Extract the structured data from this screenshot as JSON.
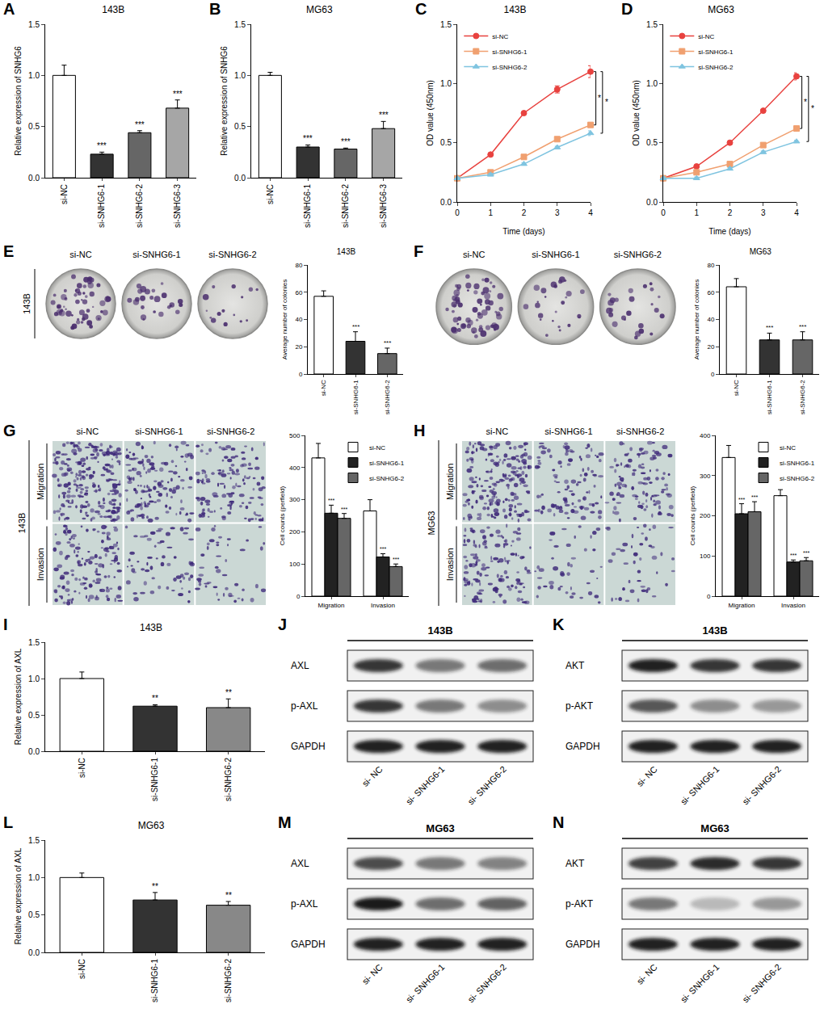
{
  "chart_data": [
    {
      "panel": "A",
      "type": "bar",
      "title": "143B",
      "categories": [
        "si-NC",
        "si-SNHG6-1",
        "si-SNHG6-2",
        "si-SNHG6-3"
      ],
      "values": [
        1.0,
        0.23,
        0.44,
        0.68
      ],
      "errors": [
        0.1,
        0.02,
        0.02,
        0.08
      ],
      "significance": [
        null,
        "***",
        "***",
        "***"
      ],
      "colors": [
        "#ffffff",
        "#333333",
        "#666666",
        "#a6a6a6"
      ],
      "y_label": "Relative expression of SNHG6",
      "ylim": [
        0,
        1.5
      ],
      "yticks": [
        {
          "value": 0,
          "label": "0.0"
        },
        {
          "value": 0.5,
          "label": "0.5"
        },
        {
          "value": 1,
          "label": "1.0"
        },
        {
          "value": 1.5,
          "label": "1.5"
        }
      ]
    },
    {
      "panel": "B",
      "type": "bar",
      "title": "MG63",
      "categories": [
        "si-NC",
        "si-SNHG6-1",
        "si-SNHG6-2",
        "si-SNHG6-3"
      ],
      "values": [
        1.0,
        0.3,
        0.28,
        0.48
      ],
      "errors": [
        0.03,
        0.02,
        0.01,
        0.07
      ],
      "significance": [
        null,
        "***",
        "***",
        "***"
      ],
      "colors": [
        "#ffffff",
        "#333333",
        "#666666",
        "#a6a6a6"
      ],
      "y_label": "Relative expression of SNHG6",
      "ylim": [
        0,
        1.5
      ],
      "yticks": [
        {
          "value": 0,
          "label": "0.0"
        },
        {
          "value": 0.5,
          "label": "0.5"
        },
        {
          "value": 1,
          "label": "1.0"
        },
        {
          "value": 1.5,
          "label": "1.5"
        }
      ]
    },
    {
      "panel": "C",
      "type": "line",
      "title": "143B",
      "x": [
        0,
        1,
        2,
        3,
        4
      ],
      "series": [
        {
          "name": "si-NC",
          "color": "#e8423f",
          "marker": "circle",
          "values": [
            0.2,
            0.4,
            0.75,
            0.95,
            1.1
          ],
          "errors": [
            0.01,
            0.01,
            0.01,
            0.03,
            0.05
          ]
        },
        {
          "name": "si-SNHG6-1",
          "color": "#f0a070",
          "marker": "square",
          "values": [
            0.2,
            0.25,
            0.38,
            0.53,
            0.65
          ],
          "errors": [
            0.01,
            0.01,
            0.01,
            0.01,
            0.02
          ]
        },
        {
          "name": "si-SNHG6-2",
          "color": "#7fc4e0",
          "marker": "triangle-up",
          "values": [
            0.2,
            0.23,
            0.32,
            0.46,
            0.58
          ],
          "errors": [
            0.01,
            0.01,
            0.01,
            0.01,
            0.02
          ]
        }
      ],
      "comparisons": [
        {
          "between": [
            "si-NC",
            "si-SNHG6-1"
          ],
          "label": "*"
        },
        {
          "between": [
            "si-NC",
            "si-SNHG6-2"
          ],
          "label": "*"
        }
      ],
      "x_label": "Time (days)",
      "y_label": "OD value (450nm)",
      "legend": "top-left",
      "xlim": [
        0,
        4
      ],
      "xticks": [
        0,
        1,
        2,
        3,
        4
      ],
      "ylim": [
        0,
        1.5
      ],
      "yticks": [
        {
          "value": 0,
          "label": "0.0"
        },
        {
          "value": 0.5,
          "label": "0.5"
        },
        {
          "value": 1,
          "label": "1.0"
        },
        {
          "value": 1.5,
          "label": "1.5"
        }
      ]
    },
    {
      "panel": "D",
      "type": "line",
      "title": "MG63",
      "x": [
        0,
        1,
        2,
        3,
        4
      ],
      "series": [
        {
          "name": "si-NC",
          "color": "#e8423f",
          "marker": "circle",
          "values": [
            0.2,
            0.3,
            0.5,
            0.77,
            1.06
          ],
          "errors": [
            0.01,
            0.01,
            0.01,
            0.01,
            0.03
          ]
        },
        {
          "name": "si-SNHG6-1",
          "color": "#f0a070",
          "marker": "square",
          "values": [
            0.2,
            0.25,
            0.32,
            0.48,
            0.62
          ],
          "errors": [
            0.01,
            0.01,
            0.01,
            0.01,
            0.02
          ]
        },
        {
          "name": "si-SNHG6-2",
          "color": "#7fc4e0",
          "marker": "triangle-up",
          "values": [
            0.2,
            0.2,
            0.28,
            0.42,
            0.51
          ],
          "errors": [
            0.01,
            0.01,
            0.01,
            0.01,
            0.01
          ]
        }
      ],
      "comparisons": [
        {
          "between": [
            "si-NC",
            "si-SNHG6-1"
          ],
          "label": "*"
        },
        {
          "between": [
            "si-NC",
            "si-SNHG6-2"
          ],
          "label": "*"
        }
      ],
      "x_label": "Time (days)",
      "y_label": "OD value (450nm)",
      "legend": "top-left",
      "xlim": [
        0,
        4
      ],
      "xticks": [
        0,
        1,
        2,
        3,
        4
      ],
      "ylim": [
        0,
        1.5
      ],
      "yticks": [
        {
          "value": 0,
          "label": "0.0"
        },
        {
          "value": 0.5,
          "label": "0.5"
        },
        {
          "value": 1,
          "label": "1.0"
        },
        {
          "value": 1.5,
          "label": "1.5"
        }
      ]
    },
    {
      "panel": "E",
      "type": "bar",
      "title": "143B",
      "categories": [
        "si-NC",
        "si-SNHG6-1",
        "si-SNHG6-2"
      ],
      "values": [
        57,
        24,
        15
      ],
      "errors": [
        4,
        7,
        4
      ],
      "significance": [
        null,
        "***",
        "***"
      ],
      "colors": [
        "#ffffff",
        "#333333",
        "#666666"
      ],
      "y_label": "Average number of colonies",
      "ylim": [
        0,
        80
      ],
      "yticks": [
        0,
        20,
        40,
        60,
        80
      ],
      "image": {
        "kind": "dish",
        "row_label": "143B",
        "labels": [
          "si-NC",
          "si-SNHG6-1",
          "si-SNHG6-2"
        ]
      }
    },
    {
      "panel": "F",
      "type": "bar",
      "title": "MG63",
      "categories": [
        "si-NC",
        "si-SNHG6-1",
        "si-SNHG6-2"
      ],
      "values": [
        64,
        25,
        25
      ],
      "errors": [
        6,
        5,
        6
      ],
      "significance": [
        null,
        "***",
        "***"
      ],
      "colors": [
        "#ffffff",
        "#333333",
        "#666666"
      ],
      "y_label": "Average number of colonies",
      "ylim": [
        0,
        80
      ],
      "yticks": [
        0,
        20,
        40,
        60,
        80
      ],
      "image": {
        "kind": "dish",
        "labels": [
          "si-NC",
          "si-SNHG6-1",
          "si-SNHG6-2"
        ]
      }
    },
    {
      "panel": "G",
      "type": "bar",
      "categories": [
        "Migration",
        "Invasion"
      ],
      "series": [
        {
          "name": "si-NC",
          "color": "#ffffff",
          "values": [
            430,
            265
          ],
          "errors": [
            45,
            35
          ],
          "significance": [
            null,
            null
          ]
        },
        {
          "name": "si-SNHG6-1",
          "color": "#222222",
          "values": [
            258,
            122
          ],
          "errors": [
            25,
            10
          ],
          "significance": [
            "***",
            "***"
          ]
        },
        {
          "name": "si-SNHG6-2",
          "color": "#666666",
          "values": [
            242,
            92
          ],
          "errors": [
            15,
            8
          ],
          "significance": [
            "***",
            "***"
          ]
        }
      ],
      "legend": "top-right",
      "y_label": "Cell counts (perfield)",
      "ylim": [
        0,
        500
      ],
      "yticks": [
        0,
        100,
        200,
        300,
        400,
        500
      ],
      "image": {
        "kind": "micrograph",
        "cell_line": "143B",
        "columns": [
          "si-NC",
          "si-SNHG6-1",
          "si-SNHG6-2"
        ],
        "rows": [
          "Migration",
          "Invasion"
        ]
      }
    },
    {
      "panel": "H",
      "type": "bar",
      "categories": [
        "Migration",
        "Invasion"
      ],
      "series": [
        {
          "name": "si-NC",
          "color": "#ffffff",
          "values": [
            345,
            250
          ],
          "errors": [
            30,
            15
          ],
          "significance": [
            null,
            null
          ]
        },
        {
          "name": "si-SNHG6-1",
          "color": "#222222",
          "values": [
            205,
            85
          ],
          "errors": [
            25,
            5
          ],
          "significance": [
            "***",
            "***"
          ]
        },
        {
          "name": "si-SNHG6-2",
          "color": "#666666",
          "values": [
            210,
            88
          ],
          "errors": [
            25,
            8
          ],
          "significance": [
            "***",
            "***"
          ]
        }
      ],
      "legend": "top-right",
      "y_label": "Cell counts (perfield)",
      "ylim": [
        0,
        400
      ],
      "yticks": [
        0,
        100,
        200,
        300,
        400
      ],
      "image": {
        "kind": "micrograph",
        "cell_line": "MG63",
        "columns": [
          "si-NC",
          "si-SNHG6-1",
          "si-SNHG6-2"
        ],
        "rows": [
          "Migration",
          "Invasion"
        ]
      }
    },
    {
      "panel": "I",
      "type": "bar",
      "title": "143B",
      "categories": [
        "si-NC",
        "si-SNHG6-1",
        "si-SNHG6-2"
      ],
      "values": [
        1.0,
        0.62,
        0.6
      ],
      "errors": [
        0.09,
        0.02,
        0.12
      ],
      "significance": [
        null,
        "**",
        "**"
      ],
      "colors": [
        "#ffffff",
        "#333333",
        "#888888"
      ],
      "y_label": "Relative expression of AXL",
      "ylim": [
        0,
        1.5
      ],
      "yticks": [
        {
          "value": 0,
          "label": "0.0"
        },
        {
          "value": 0.5,
          "label": "0.5"
        },
        {
          "value": 1,
          "label": "1.0"
        },
        {
          "value": 1.5,
          "label": "1.5"
        }
      ]
    },
    {
      "panel": "L",
      "type": "bar",
      "title": "MG63",
      "categories": [
        "si-NC",
        "si-SNHG6-1",
        "si-SNHG6-2"
      ],
      "values": [
        1.0,
        0.7,
        0.63
      ],
      "errors": [
        0.06,
        0.1,
        0.05
      ],
      "significance": [
        null,
        "**",
        "**"
      ],
      "colors": [
        "#ffffff",
        "#333333",
        "#888888"
      ],
      "y_label": "Relative expression of AXL",
      "ylim": [
        0,
        1.5
      ],
      "yticks": [
        {
          "value": 0,
          "label": "0.0"
        },
        {
          "value": 0.5,
          "label": "0.5"
        },
        {
          "value": 1,
          "label": "1.0"
        },
        {
          "value": 1.5,
          "label": "1.5"
        }
      ]
    }
  ],
  "blots": [
    {
      "panel": "J",
      "title": "143B",
      "lanes": [
        "si- NC",
        "si- SNHG6-1",
        "si- SNHG6-2"
      ],
      "rows": [
        {
          "label": "AXL",
          "intensity": [
            0.85,
            0.55,
            0.6
          ]
        },
        {
          "label": "p-AXL",
          "intensity": [
            0.85,
            0.55,
            0.45
          ]
        },
        {
          "label": "GAPDH",
          "intensity": [
            0.95,
            0.95,
            0.95
          ]
        }
      ]
    },
    {
      "panel": "K",
      "title": "143B",
      "lanes": [
        "si- NC",
        "si- SNHG6-1",
        "si- SNHG6-2"
      ],
      "rows": [
        {
          "label": "AKT",
          "intensity": [
            0.95,
            0.85,
            0.85
          ]
        },
        {
          "label": "p-AKT",
          "intensity": [
            0.7,
            0.45,
            0.4
          ]
        },
        {
          "label": "GAPDH",
          "intensity": [
            0.95,
            0.95,
            0.95
          ]
        }
      ]
    },
    {
      "panel": "M",
      "title": "MG63",
      "lanes": [
        "si- NC",
        "si- SNHG6-1",
        "si- SNHG6-2"
      ],
      "rows": [
        {
          "label": "AXL",
          "intensity": [
            0.75,
            0.55,
            0.5
          ]
        },
        {
          "label": "p-AXL",
          "intensity": [
            0.98,
            0.6,
            0.65
          ]
        },
        {
          "label": "GAPDH",
          "intensity": [
            0.95,
            0.95,
            0.95
          ]
        }
      ]
    },
    {
      "panel": "N",
      "title": "MG63",
      "lanes": [
        "si- NC",
        "si- SNHG6-1",
        "si- SNHG6-2"
      ],
      "rows": [
        {
          "label": "AKT",
          "intensity": [
            0.8,
            0.9,
            0.85
          ]
        },
        {
          "label": "p-AKT",
          "intensity": [
            0.55,
            0.25,
            0.4
          ]
        },
        {
          "label": "GAPDH",
          "intensity": [
            0.95,
            0.95,
            0.95
          ]
        }
      ]
    }
  ]
}
